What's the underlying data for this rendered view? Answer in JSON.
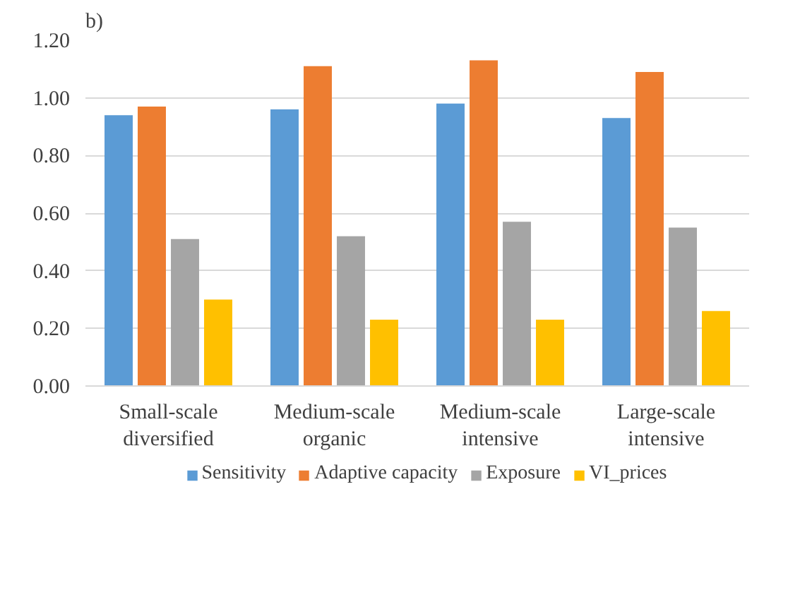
{
  "chart_data": {
    "type": "bar",
    "title": "b)",
    "categories": [
      "Small-scale diversified",
      "Medium-scale organic",
      "Medium-scale intensive",
      "Large-scale intensive"
    ],
    "series": [
      {
        "name": "Sensitivity",
        "color": "#5b9bd5",
        "values": [
          0.94,
          0.96,
          0.98,
          0.93
        ]
      },
      {
        "name": "Adaptive capacity",
        "color": "#ed7d31",
        "values": [
          0.97,
          1.11,
          1.13,
          1.09
        ]
      },
      {
        "name": "Exposure",
        "color": "#a5a5a5",
        "values": [
          0.51,
          0.52,
          0.57,
          0.55
        ]
      },
      {
        "name": "VI_prices",
        "color": "#ffc000",
        "values": [
          0.3,
          0.23,
          0.23,
          0.26
        ]
      }
    ],
    "ylim": [
      0,
      1.2
    ],
    "yticks": [
      {
        "value": 0,
        "label": "0.00"
      },
      {
        "value": 0.2,
        "label": "0.20"
      },
      {
        "value": 0.4,
        "label": "0.40"
      },
      {
        "value": 0.6,
        "label": "0.60"
      },
      {
        "value": 0.8,
        "label": "0.80"
      },
      {
        "value": 1.0,
        "label": "1.00"
      },
      {
        "value": 1.2,
        "label": "1.20"
      }
    ],
    "grid": "y",
    "legend": "bottom"
  }
}
